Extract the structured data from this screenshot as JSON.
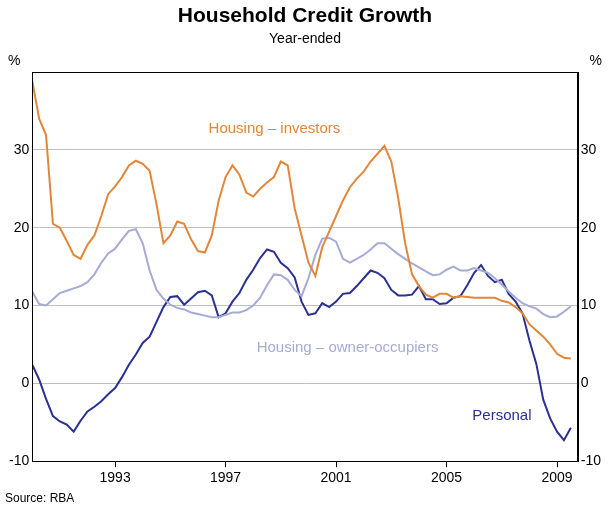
{
  "chart_data": {
    "type": "line",
    "title": "Household Credit Growth",
    "subtitle": "Year-ended",
    "ylabel": "%",
    "y2label": "%",
    "source": "Source: RBA",
    "x": [
      1990,
      1990.25,
      1990.5,
      1990.75,
      1991,
      1991.25,
      1991.5,
      1991.75,
      1992,
      1992.25,
      1992.5,
      1992.75,
      1993,
      1993.25,
      1993.5,
      1993.75,
      1994,
      1994.25,
      1994.5,
      1994.75,
      1995,
      1995.25,
      1995.5,
      1995.75,
      1996,
      1996.25,
      1996.5,
      1996.75,
      1997,
      1997.25,
      1997.5,
      1997.75,
      1998,
      1998.25,
      1998.5,
      1998.75,
      1999,
      1999.25,
      1999.5,
      1999.75,
      2000,
      2000.25,
      2000.5,
      2000.75,
      2001,
      2001.25,
      2001.5,
      2001.75,
      2002,
      2002.25,
      2002.5,
      2002.75,
      2003,
      2003.25,
      2003.5,
      2003.75,
      2004,
      2004.25,
      2004.5,
      2004.75,
      2005,
      2005.25,
      2005.5,
      2005.75,
      2006,
      2006.25,
      2006.5,
      2006.75,
      2007,
      2007.25,
      2007.5,
      2007.75,
      2008,
      2008.25,
      2008.5,
      2008.75,
      2009,
      2009.25,
      2009.5
    ],
    "series": [
      {
        "name": "Housing – investors",
        "color": "#e0873a",
        "values": [
          38.9,
          34,
          31.9,
          20.5,
          20,
          18.3,
          16.5,
          16,
          17.8,
          19,
          21.5,
          24.3,
          25.3,
          26.5,
          28,
          28.6,
          28.2,
          27.3,
          23,
          18,
          19,
          20.8,
          20.5,
          18.5,
          17,
          16.8,
          19,
          23.5,
          26.5,
          28,
          26.8,
          24.5,
          24,
          25,
          25.8,
          26.5,
          28.5,
          28,
          22.5,
          19,
          15.5,
          13.8,
          17.5,
          19.5,
          21.5,
          23.5,
          25.2,
          26.3,
          27.2,
          28.5,
          29.5,
          30.5,
          28.5,
          23.8,
          18,
          14,
          12.5,
          11.4,
          11,
          11.5,
          11.5,
          11,
          11.2,
          11.1,
          11,
          11,
          11,
          11,
          10.6,
          10.4,
          9.8,
          9,
          7.6,
          6.8,
          6,
          5,
          3.8,
          3.3,
          3.2
        ]
      },
      {
        "name": "Housing – owner-occupiers",
        "color": "#a6abd6",
        "values": [
          11.8,
          10.2,
          10,
          10.8,
          11.6,
          11.9,
          12.2,
          12.5,
          13,
          14,
          15.5,
          16.7,
          17.3,
          18.5,
          19.6,
          19.8,
          18,
          14.5,
          12,
          10.9,
          10.1,
          9.7,
          9.5,
          9.1,
          8.9,
          8.7,
          8.5,
          8.5,
          8.8,
          9.1,
          9.1,
          9.4,
          10,
          11,
          12.6,
          14,
          13.9,
          13.3,
          12,
          11.2,
          13.5,
          16.5,
          18.6,
          18.7,
          18.2,
          16,
          15.5,
          16,
          16.5,
          17.2,
          18,
          18,
          17.3,
          16.6,
          16,
          15.4,
          14.9,
          14.4,
          13.9,
          14,
          14.6,
          15,
          14.5,
          14.5,
          14.8,
          14.5,
          14.2,
          13.5,
          12.7,
          11.8,
          11,
          10.3,
          9.9,
          9.6,
          8.9,
          8.5,
          8.6,
          9.2,
          9.9
        ]
      },
      {
        "name": "Personal",
        "color": "#2b3090",
        "values": [
          2.4,
          0.5,
          -2,
          -4.2,
          -4.9,
          -5.3,
          -6.2,
          -4.8,
          -3.6,
          -3,
          -2.3,
          -1.4,
          -0.6,
          0.8,
          2.4,
          3.7,
          5.2,
          6,
          7.9,
          9.8,
          11.1,
          11.2,
          10.1,
          10.9,
          11.7,
          11.9,
          11.3,
          8.5,
          9,
          10.5,
          11.6,
          13.3,
          14.6,
          16.1,
          17.2,
          16.9,
          15.5,
          14.8,
          13.6,
          10.5,
          8.8,
          9,
          10.3,
          9.8,
          10.5,
          11.5,
          11.6,
          12.5,
          13.5,
          14.5,
          14.2,
          13.5,
          12,
          11.3,
          11.3,
          11.4,
          12.5,
          10.8,
          10.8,
          10.2,
          10.3,
          11,
          11.2,
          12.6,
          14.2,
          15.2,
          13.8,
          13,
          13.3,
          11.5,
          10.5,
          9,
          5.5,
          2.5,
          -2.1,
          -4.5,
          -6.2,
          -7.3,
          -5.7
        ]
      }
    ],
    "xlim": [
      1990,
      2009.75
    ],
    "xticks": [
      1993,
      1997,
      2001,
      2005,
      2009
    ],
    "ylim": [
      -10,
      40
    ],
    "yticks": [
      -10,
      0,
      10,
      20,
      30
    ],
    "y2lim": [
      -10,
      40
    ],
    "y2ticks": [
      -10,
      0,
      10,
      20,
      30
    ],
    "grid": true
  }
}
